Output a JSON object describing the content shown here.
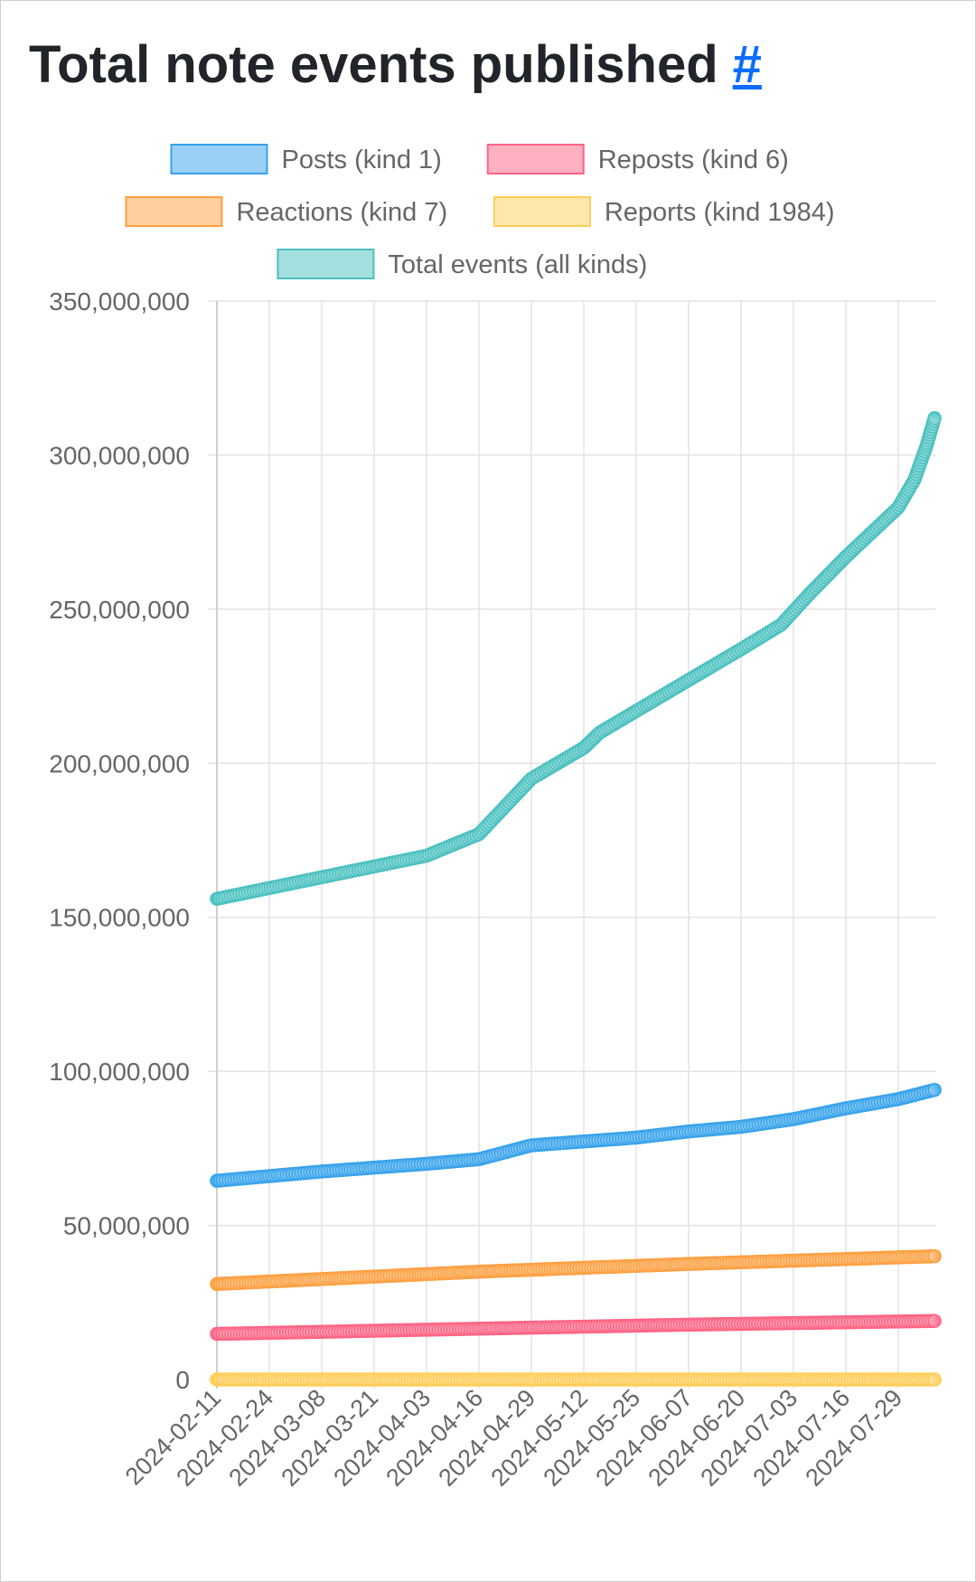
{
  "page": {
    "title": "Total note events published",
    "anchor": "#"
  },
  "chart_data": {
    "type": "line",
    "title": "Total note events published",
    "xlabel": "",
    "ylabel": "",
    "ylim": [
      0,
      350000000
    ],
    "grid": true,
    "legend": "top",
    "x_ticks": [
      "2024-02-11",
      "2024-02-24",
      "2024-03-08",
      "2024-03-21",
      "2024-04-03",
      "2024-04-16",
      "2024-04-29",
      "2024-05-12",
      "2024-05-25",
      "2024-06-07",
      "2024-06-20",
      "2024-07-03",
      "2024-07-16",
      "2024-07-29"
    ],
    "y_ticks": [
      0,
      50000000,
      100000000,
      150000000,
      200000000,
      250000000,
      300000000,
      350000000
    ],
    "y_tick_labels": [
      "0",
      "50,000,000",
      "100,000,000",
      "150,000,000",
      "200,000,000",
      "250,000,000",
      "300,000,000",
      "350,000,000"
    ],
    "series": [
      {
        "name": "Posts (kind 1)",
        "color": "#36a2eb",
        "line_color": "#0ea5e9",
        "fill": "#9ad0f5",
        "points": [
          [
            "2024-02-11",
            64500000
          ],
          [
            "2024-03-08",
            67500000
          ],
          [
            "2024-04-03",
            70000000
          ],
          [
            "2024-04-16",
            71500000
          ],
          [
            "2024-04-29",
            76000000
          ],
          [
            "2024-05-25",
            78500000
          ],
          [
            "2024-06-07",
            80500000
          ],
          [
            "2024-06-20",
            82000000
          ],
          [
            "2024-07-03",
            84500000
          ],
          [
            "2024-07-16",
            88000000
          ],
          [
            "2024-07-29",
            91000000
          ],
          [
            "2024-08-07",
            94000000
          ]
        ]
      },
      {
        "name": "Reposts (kind 6)",
        "color": "#ff6384",
        "line_color": "#ff4f7b",
        "fill": "#ffb1c1",
        "points": [
          [
            "2024-02-11",
            14800000
          ],
          [
            "2024-04-16",
            16500000
          ],
          [
            "2024-06-07",
            17800000
          ],
          [
            "2024-08-07",
            19000000
          ]
        ]
      },
      {
        "name": "Reactions (kind 7)",
        "color": "#ff9f40",
        "line_color": "#ff9a1f",
        "fill": "#ffcf9f",
        "points": [
          [
            "2024-02-11",
            31000000
          ],
          [
            "2024-04-16",
            35000000
          ],
          [
            "2024-06-07",
            37500000
          ],
          [
            "2024-08-07",
            40000000
          ]
        ]
      },
      {
        "name": "Reports (kind 1984)",
        "color": "#ffcd56",
        "line_color": "#ffc935",
        "fill": "#ffe6aa",
        "points": [
          [
            "2024-02-11",
            0
          ],
          [
            "2024-08-07",
            0
          ]
        ]
      },
      {
        "name": "Total events (all kinds)",
        "color": "#4bc0c0",
        "line_color": "#20c2ba",
        "fill": "#a5dfdf",
        "points": [
          [
            "2024-02-11",
            156000000
          ],
          [
            "2024-03-08",
            163000000
          ],
          [
            "2024-04-03",
            170000000
          ],
          [
            "2024-04-16",
            177000000
          ],
          [
            "2024-04-29",
            195000000
          ],
          [
            "2024-05-12",
            205000000
          ],
          [
            "2024-05-16",
            210000000
          ],
          [
            "2024-06-07",
            227000000
          ],
          [
            "2024-06-20",
            237000000
          ],
          [
            "2024-06-30",
            245000000
          ],
          [
            "2024-07-07",
            255000000
          ],
          [
            "2024-07-16",
            267000000
          ],
          [
            "2024-07-29",
            283000000
          ],
          [
            "2024-08-02",
            292000000
          ],
          [
            "2024-08-05",
            303000000
          ],
          [
            "2024-08-07",
            312000000
          ]
        ]
      }
    ]
  }
}
